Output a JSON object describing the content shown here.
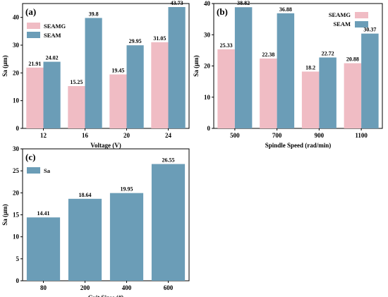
{
  "chart_data": [
    {
      "panel": "(a)",
      "type": "bar",
      "xlabel": "Voltage (V)",
      "ylabel": "Sa (μm)",
      "categories": [
        "12",
        "16",
        "20",
        "24"
      ],
      "ylim": [
        0,
        45
      ],
      "yticks": [
        0,
        10,
        20,
        30,
        40
      ],
      "legend_position": "top-left",
      "series": [
        {
          "name": "SEAMG",
          "values": [
            21.91,
            15.25,
            19.45,
            31.05
          ]
        },
        {
          "name": "SEAM",
          "values": [
            24.02,
            39.8,
            29.95,
            43.73
          ]
        }
      ],
      "value_labels": [
        [
          "21.91",
          "15.25",
          "19.45",
          "31.05"
        ],
        [
          "24.02",
          "39.8",
          "29.95",
          "43.73"
        ]
      ]
    },
    {
      "panel": "(b)",
      "type": "bar",
      "xlabel": "Spindle Speed (rad/min)",
      "ylabel": "Sa (μm)",
      "categories": [
        "500",
        "700",
        "900",
        "1100"
      ],
      "ylim": [
        0,
        40
      ],
      "yticks": [
        0,
        10,
        20,
        30,
        40
      ],
      "legend_position": "top-right",
      "series": [
        {
          "name": "SEAMG",
          "values": [
            25.33,
            22.38,
            18.2,
            20.88
          ]
        },
        {
          "name": "SEAM",
          "values": [
            38.82,
            36.88,
            22.72,
            30.37
          ]
        }
      ],
      "value_labels": [
        [
          "25.33",
          "22.38",
          "18.2",
          "20.88"
        ],
        [
          "38.82",
          "36.88",
          "22.72",
          "30.37"
        ]
      ]
    },
    {
      "panel": "(c)",
      "type": "bar",
      "xlabel": "Grit Sizes (#)",
      "ylabel": "Sa (μm)",
      "categories": [
        "80",
        "200",
        "400",
        "600"
      ],
      "ylim": [
        0,
        30
      ],
      "yticks": [
        0,
        5,
        10,
        15,
        20,
        25,
        30
      ],
      "legend_position": "top-left",
      "series": [
        {
          "name": "Sa",
          "values": [
            14.41,
            18.64,
            19.95,
            26.55
          ]
        }
      ],
      "value_labels": [
        [
          "14.41",
          "18.64",
          "19.95",
          "26.55"
        ]
      ]
    }
  ],
  "colors": {
    "SEAMG": "#f0bcc4",
    "SEAM": "#6b9db7",
    "Sa": "#6b9db7"
  }
}
